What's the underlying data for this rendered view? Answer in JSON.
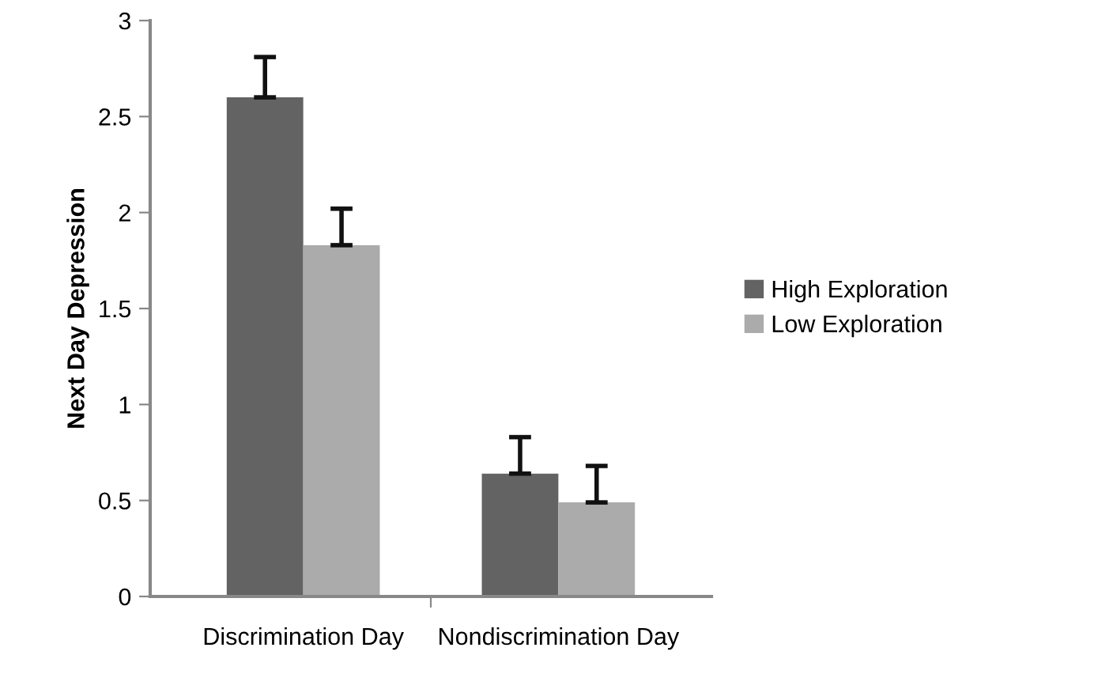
{
  "chart_data": {
    "type": "bar",
    "ylabel": "Next Day Depression",
    "categories": [
      "Discrimination Day",
      "Nondiscrimination Day"
    ],
    "series": [
      {
        "name": "High Exploration",
        "color": "#636363",
        "values": [
          2.6,
          0.64
        ],
        "errors": [
          [
            2.6,
            2.81
          ],
          [
            0.64,
            0.83
          ]
        ]
      },
      {
        "name": "Low Exploration",
        "color": "#ababab",
        "values": [
          1.83,
          0.49
        ],
        "errors": [
          [
            1.83,
            2.02
          ],
          [
            0.49,
            0.68
          ]
        ]
      }
    ],
    "ylim": [
      0,
      3
    ],
    "yticks": [
      0,
      0.5,
      1,
      1.5,
      2,
      2.5,
      3
    ],
    "grid": false,
    "legend": "right"
  }
}
